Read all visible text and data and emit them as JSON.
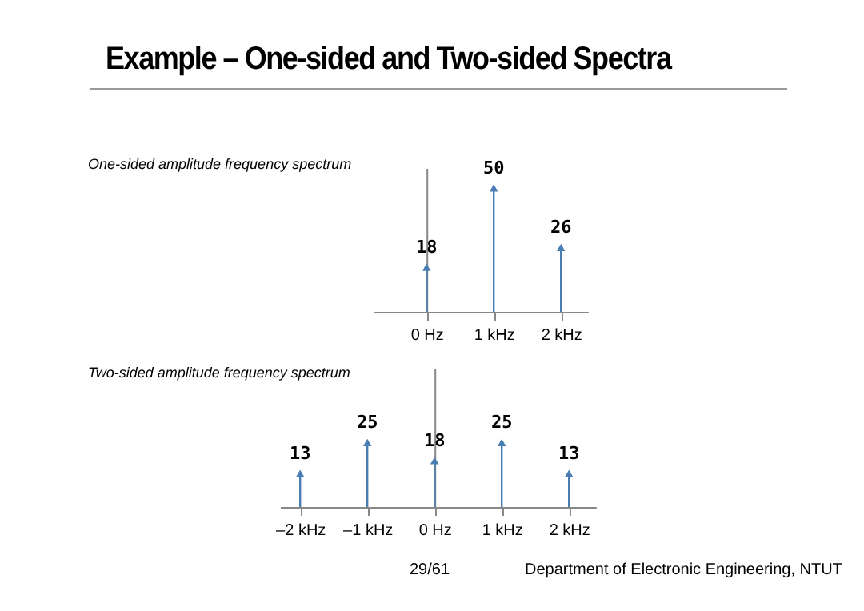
{
  "chart_data": [
    {
      "type": "lollipop",
      "title": "Example – One-sided and Two-sided Spectra",
      "subtitle": "One-sided amplitude frequency spectrum",
      "x": [
        0,
        1,
        2
      ],
      "values": [
        18,
        50,
        26
      ],
      "color": "#4a7db3",
      "data_labels": true,
      "marker": "triangle",
      "xlim": [
        -0.8,
        2.4
      ],
      "xticks": [
        {
          "value": 0,
          "label": "0 Hz"
        },
        {
          "value": 1,
          "label": "1 kHz"
        },
        {
          "value": 2,
          "label": "2 kHz"
        }
      ],
      "ylim": [
        0,
        58
      ],
      "tick_labels": "x"
    },
    {
      "type": "lollipop",
      "title": "Two-sided amplitude frequency spectrum",
      "x": [
        -2,
        -1,
        0,
        1,
        2
      ],
      "values": [
        13,
        25,
        18,
        25,
        13
      ],
      "color": "#4a7db3",
      "data_labels": true,
      "marker": "triangle",
      "xlim": [
        -2.3,
        2.4
      ],
      "xticks": [
        {
          "value": -2,
          "label": "–2 kHz"
        },
        {
          "value": -1,
          "label": "–1 kHz"
        },
        {
          "value": 0,
          "label": "0 Hz"
        },
        {
          "value": 1,
          "label": "1 kHz"
        },
        {
          "value": 2,
          "label": "2 kHz"
        }
      ],
      "ylim": [
        0,
        54
      ],
      "tick_labels": "x",
      "annotations": [
        "29/61",
        "Department of Electronic Engineering, NTUT"
      ]
    }
  ]
}
